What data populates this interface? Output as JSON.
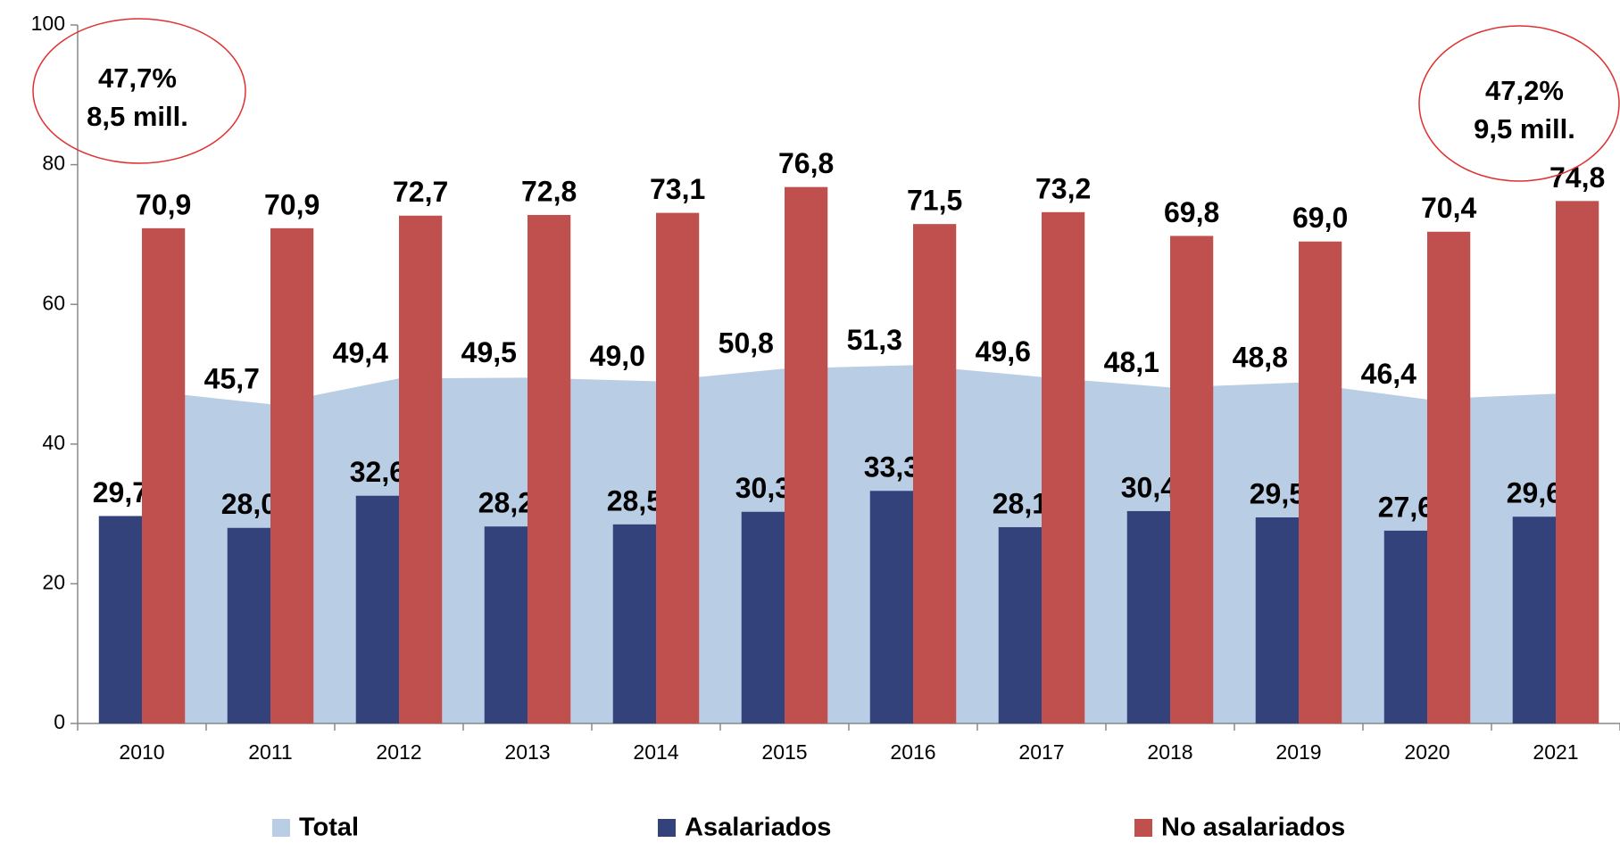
{
  "chart_data": {
    "type": "bar",
    "categories": [
      "2010",
      "2011",
      "2012",
      "2013",
      "2014",
      "2015",
      "2016",
      "2017",
      "2018",
      "2019",
      "2020",
      "2021"
    ],
    "series": [
      {
        "name": "Total",
        "type": "area",
        "color": "#b9cde5",
        "values": [
          47.7,
          45.7,
          49.4,
          49.5,
          49.0,
          50.8,
          51.3,
          49.6,
          48.1,
          48.8,
          46.4,
          47.2
        ],
        "value_labels": [
          null,
          "45,7",
          "49,4",
          "49,5",
          "49,0",
          "50,8",
          "51,3",
          "49,6",
          "48,1",
          "48,8",
          "46,4",
          null
        ]
      },
      {
        "name": "Asalariados",
        "type": "bar",
        "color": "#34427c",
        "values": [
          29.7,
          28.0,
          32.6,
          28.2,
          28.5,
          30.3,
          33.3,
          28.1,
          30.4,
          29.5,
          27.6,
          29.6
        ],
        "value_labels": [
          "29,7",
          "28,0",
          "32,6",
          "28,2",
          "28,5",
          "30,3",
          "33,3",
          "28,1",
          "30,4",
          "29,5",
          "27,6",
          "29,6"
        ]
      },
      {
        "name": "No asalariados",
        "type": "bar",
        "color": "#c0504d",
        "values": [
          70.9,
          70.9,
          72.7,
          72.8,
          73.1,
          76.8,
          71.5,
          73.2,
          69.8,
          69.0,
          70.4,
          74.8
        ],
        "value_labels": [
          "70,9",
          "70,9",
          "72,7",
          "72,8",
          "73,1",
          "76,8",
          "71,5",
          "73,2",
          "69,8",
          "69,0",
          "70,4",
          "74,8"
        ]
      }
    ],
    "ylim": [
      0,
      100
    ],
    "yticks": [
      0,
      20,
      40,
      60,
      80,
      100
    ],
    "legend": "bottom",
    "annotations": [
      {
        "lines": [
          "47,7%",
          "8,5 mill."
        ],
        "color": "#e03030"
      },
      {
        "lines": [
          "47,2%",
          "9,5 mill."
        ],
        "color": "#e03030"
      }
    ]
  }
}
